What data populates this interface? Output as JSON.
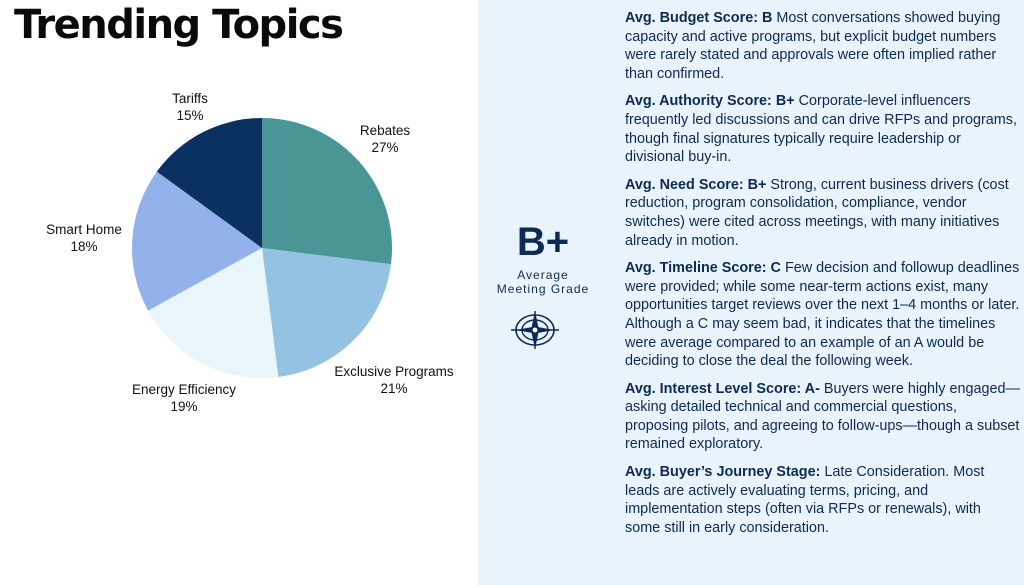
{
  "page": {
    "title": "Trending Topics",
    "colors": {
      "navy": "#0c2a52",
      "panel_bg": "#e9f3fb"
    }
  },
  "chart_data": {
    "type": "pie",
    "title": "Trending Topics",
    "slices": [
      {
        "label": "Rebates",
        "value": 27,
        "pct_label": "27%",
        "color": "#4a9697"
      },
      {
        "label": "Exclusive Programs",
        "value": 21,
        "pct_label": "21%",
        "color": "#93c2e2"
      },
      {
        "label": "Energy Efficiency",
        "value": 19,
        "pct_label": "19%",
        "color": "#e8f6fa"
      },
      {
        "label": "Smart Home",
        "value": 18,
        "pct_label": "18%",
        "color": "#93b2ec"
      },
      {
        "label": "Tariffs",
        "value": 15,
        "pct_label": "15%",
        "color": "#0a3160"
      }
    ],
    "start": "12 o'clock",
    "direction": "clockwise",
    "legend": "none"
  },
  "grade": {
    "value": "B+",
    "caption_line1": "Average",
    "caption_line2": "Meeting Grade",
    "icon": "compass-icon"
  },
  "scores": [
    {
      "heading": "Avg. Budget Score: B",
      "text": " Most conversations showed buying capacity and active programs, but explicit budget numbers were rarely stated and approvals were often implied rather than confirmed."
    },
    {
      "heading": "Avg. Authority Score: B+",
      "text": " Corporate-level influencers frequently led discussions and can drive RFPs and programs, though final signatures typically require leadership or divisional buy-in."
    },
    {
      "heading": "Avg. Need Score: B+",
      "text": " Strong, current business drivers (cost reduction, program consolidation, compliance, vendor switches) were cited across meetings, with many initiatives already in motion."
    },
    {
      "heading": "Avg. Timeline Score: C",
      "text": " Few decision and followup deadlines were provided; while some near-term actions exist, many opportunities target reviews over the next 1–4 months or later. Although a C may seem bad, it indicates that the timelines were average compared to an example of an A would be deciding to close the deal the following week."
    },
    {
      "heading": "Avg. Interest Level Score: A-",
      "text": " Buyers were highly engaged—asking detailed technical and commercial questions, proposing pilots, and agreeing to follow-ups—though a subset remained exploratory."
    },
    {
      "heading": "Avg. Buyer’s Journey Stage:",
      "text": " Late Consideration. Most leads are actively evaluating terms, pricing, and implementation steps (often via RFPs or renewals), with some still in early consideration."
    }
  ]
}
